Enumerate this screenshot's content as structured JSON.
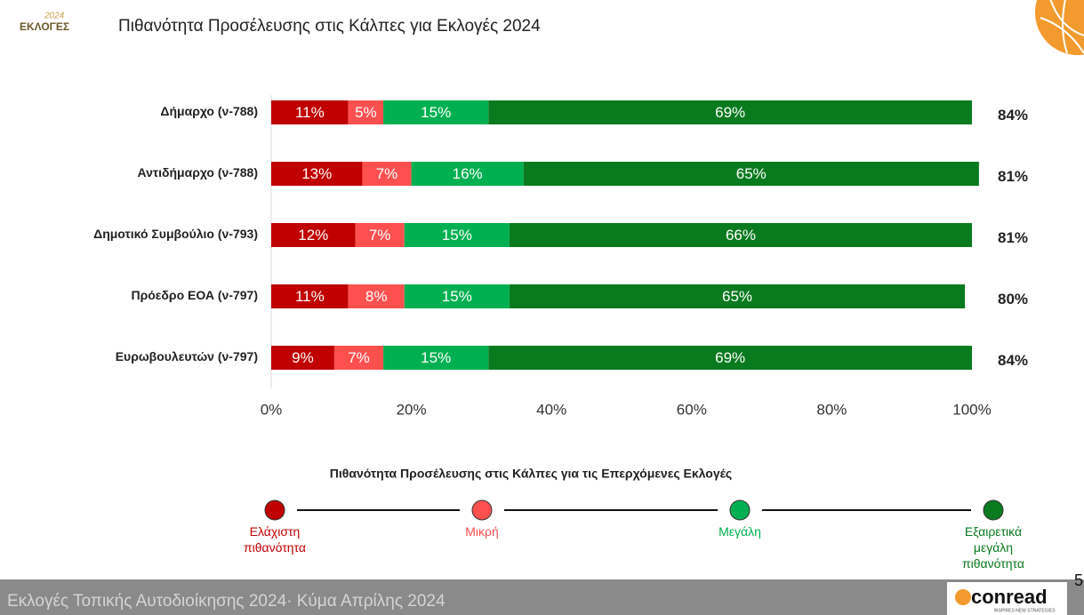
{
  "header": {
    "logo_year": "2024",
    "logo_text": "ΕΚΛΟΓΕΣ"
  },
  "chart_data": {
    "type": "stacked-bar-horizontal",
    "title": "Πιθανότητα Προσέλευσης  στις Κάλπες για Εκλογές 2024",
    "categories": [
      "Δήμαρχο (ν-788)",
      "Αντιδήμαρχο (ν-788)",
      "Δημοτικό Συμβούλιο (ν-793)",
      "Πρόεδρο ΕΟΑ (ν-797)",
      "Ευρωβουλευτών (ν-797)"
    ],
    "series": [
      {
        "name": "Ελάχιστη πιθανότητα",
        "color": "#c00000",
        "values": [
          11,
          13,
          12,
          11,
          9
        ],
        "value_labels": [
          "11%",
          "13%",
          "12%",
          "11%",
          "9%"
        ]
      },
      {
        "name": "Μικρή",
        "color": "#ff5050",
        "values": [
          5,
          7,
          7,
          8,
          7
        ],
        "value_labels": [
          "5%",
          "7%",
          "7%",
          "8%",
          "7%"
        ]
      },
      {
        "name": "Μεγάλη",
        "color": "#00b050",
        "values": [
          15,
          16,
          15,
          15,
          15
        ],
        "value_labels": [
          "15%",
          "16%",
          "15%",
          "15%",
          "15%"
        ]
      },
      {
        "name": "Εξαιρετικά μεγάλη πιθανότητα",
        "color": "#0a7a1e",
        "values": [
          69,
          65,
          66,
          65,
          69
        ],
        "value_labels": [
          "69%",
          "65%",
          "66%",
          "65%",
          "69%"
        ]
      }
    ],
    "totals": {
      "values": [
        84,
        81,
        81,
        80,
        84
      ],
      "value_labels": [
        "84%",
        "81%",
        "81%",
        "80%",
        "84%"
      ]
    },
    "xlim": [
      0,
      100
    ],
    "xticks": [
      {
        "value": 0,
        "label": "0%"
      },
      {
        "value": 20,
        "label": "20%"
      },
      {
        "value": 40,
        "label": "40%"
      },
      {
        "value": 60,
        "label": "60%"
      },
      {
        "value": 80,
        "label": "80%"
      },
      {
        "value": 100,
        "label": "100%"
      }
    ],
    "legend_title": "Πιθανότητα Προσέλευσης στις Κάλπες για τις Επερχόμενες Εκλογές"
  },
  "footer": {
    "text": "Εκλογές Τοπικής Αυτοδιοίκησης 2024· Κύμα Απρίλης 2024",
    "page": "5",
    "brand": "conread",
    "tagline": "INSPIRES NEW STRATEGIES"
  }
}
